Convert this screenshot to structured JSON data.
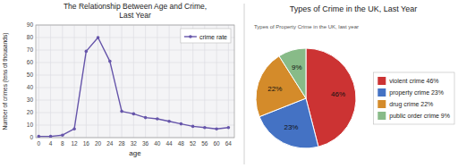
{
  "chart_data": [
    {
      "type": "line",
      "title": "The Relationship Between Age and Crime,\nLast Year",
      "x_label": "age",
      "y_label": "Number of crimes (tens of thousands)",
      "x": [
        0,
        4,
        8,
        12,
        16,
        20,
        24,
        28,
        32,
        36,
        40,
        44,
        48,
        52,
        56,
        60,
        64
      ],
      "series": [
        {
          "name": "crime rate",
          "color": "#6655aa",
          "marker": "circle",
          "values": [
            1,
            1,
            2,
            7,
            69,
            80,
            61,
            21,
            19,
            16,
            15,
            13,
            11,
            9,
            8,
            7,
            8
          ]
        }
      ],
      "xlim": [
        -1,
        66
      ],
      "xticks": [
        0,
        4,
        8,
        12,
        16,
        20,
        24,
        28,
        32,
        36,
        40,
        44,
        48,
        52,
        56,
        60,
        64
      ],
      "ylim": [
        0,
        90
      ],
      "yticks": [
        0,
        10,
        20,
        30,
        40,
        50,
        60,
        70,
        80,
        90
      ],
      "grid": true,
      "legend": "upper right"
    },
    {
      "type": "pie",
      "title": "Types of Crime in the UK, Last Year",
      "annotations": [
        "Types of Property Crime in the UK, last year"
      ],
      "categories": [
        "violent crime 46%",
        "property crime 23%",
        "drug crime 22%",
        "public order crime 9%"
      ],
      "values": [
        46,
        23,
        22,
        9
      ],
      "value_labels": [
        "46%",
        "23%",
        "22%",
        "9%"
      ],
      "colors": [
        "#cc3333",
        "#4472c4",
        "#d48b2a",
        "#88bb88"
      ],
      "data_labels": true,
      "legend": "right"
    }
  ]
}
